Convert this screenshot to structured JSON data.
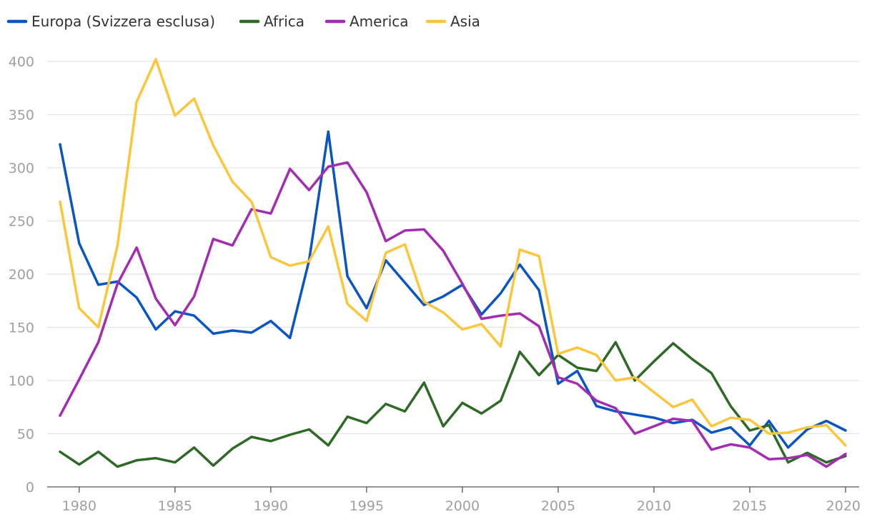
{
  "chart_data": {
    "type": "line",
    "title": "",
    "xlabel": "",
    "ylabel": "",
    "legend_position": "top-left",
    "grid": true,
    "xlim": [
      1979,
      2020
    ],
    "ylim": [
      0,
      400
    ],
    "x_ticks": [
      1980,
      1985,
      1990,
      1995,
      2000,
      2005,
      2010,
      2015,
      2020
    ],
    "y_ticks": [
      0,
      50,
      100,
      150,
      200,
      250,
      300,
      350,
      400
    ],
    "x": [
      1979,
      1980,
      1981,
      1982,
      1983,
      1984,
      1985,
      1986,
      1987,
      1988,
      1989,
      1990,
      1991,
      1992,
      1993,
      1994,
      1995,
      1996,
      1997,
      1998,
      1999,
      2000,
      2001,
      2002,
      2003,
      2004,
      2005,
      2006,
      2007,
      2008,
      2009,
      2010,
      2011,
      2012,
      2013,
      2014,
      2015,
      2016,
      2017,
      2018,
      2019,
      2020
    ],
    "series": [
      {
        "name": "Europa (Svizzera esclusa)",
        "color": "#0a55c4",
        "values": [
          322,
          229,
          190,
          193,
          178,
          148,
          165,
          161,
          144,
          147,
          145,
          156,
          140,
          213,
          334,
          198,
          168,
          213,
          192,
          171,
          179,
          190,
          162,
          182,
          209,
          185,
          97,
          109,
          76,
          71,
          68,
          65,
          60,
          63,
          51,
          56,
          39,
          62,
          37,
          54,
          62,
          53
        ]
      },
      {
        "name": "Africa",
        "color": "#2e6a26",
        "values": [
          33,
          21,
          33,
          19,
          25,
          27,
          23,
          37,
          20,
          36,
          47,
          43,
          49,
          54,
          39,
          66,
          60,
          78,
          71,
          98,
          57,
          79,
          69,
          81,
          127,
          105,
          124,
          112,
          109,
          136,
          100,
          118,
          135,
          120,
          107,
          76,
          53,
          58,
          23,
          32,
          23,
          29
        ]
      },
      {
        "name": "America",
        "color": "#a32cb3",
        "values": [
          67,
          101,
          136,
          191,
          225,
          177,
          152,
          179,
          233,
          227,
          261,
          257,
          299,
          279,
          301,
          305,
          277,
          231,
          241,
          242,
          222,
          191,
          158,
          161,
          163,
          151,
          103,
          97,
          81,
          74,
          50,
          57,
          64,
          62,
          35,
          40,
          37,
          26,
          27,
          30,
          19,
          31
        ]
      },
      {
        "name": "Asia",
        "color": "#fcc63c",
        "values": [
          268,
          168,
          150,
          227,
          362,
          402,
          349,
          365,
          321,
          287,
          268,
          216,
          208,
          212,
          245,
          172,
          156,
          220,
          228,
          174,
          164,
          148,
          153,
          132,
          223,
          217,
          125,
          131,
          124,
          100,
          103,
          89,
          75,
          82,
          57,
          65,
          63,
          50,
          51,
          56,
          58,
          39
        ]
      }
    ]
  }
}
